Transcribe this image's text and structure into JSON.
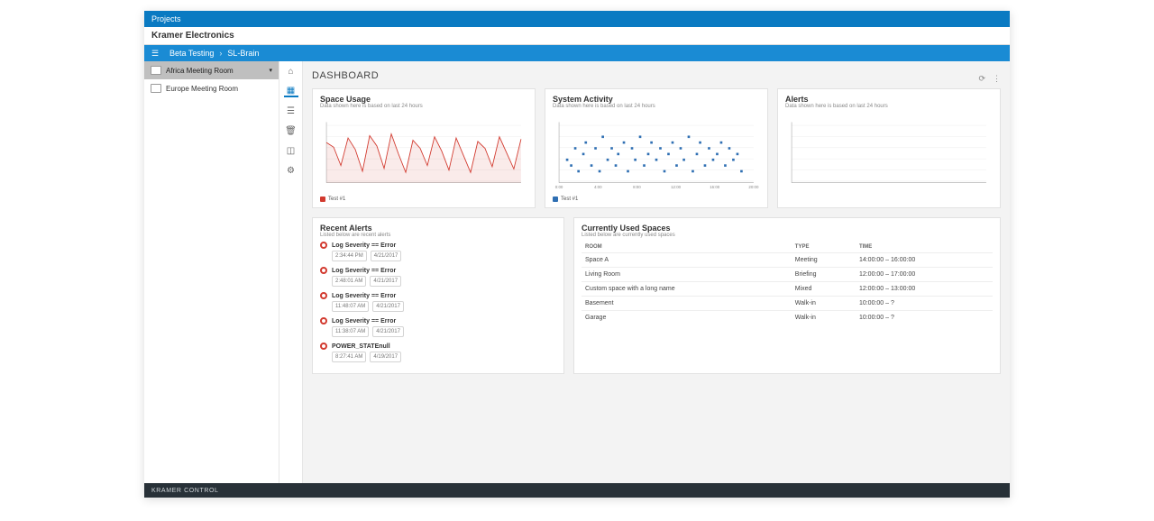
{
  "topbar": {
    "projects_label": "Projects",
    "hamburger": "menu-icon",
    "context": "Beta Testing",
    "breadcrumb_next": "SL-Brain"
  },
  "brand": "Kramer Electronics",
  "sidebar": {
    "items": [
      {
        "label": "Africa Meeting Room",
        "selected": true
      },
      {
        "label": "Europe Meeting Room",
        "selected": false
      }
    ]
  },
  "iconbar": [
    {
      "name": "home-icon",
      "glyph": "⌂",
      "active": false
    },
    {
      "name": "dashboard-icon",
      "glyph": "▦",
      "active": true
    },
    {
      "name": "document-icon",
      "glyph": "☰",
      "active": false
    },
    {
      "name": "trash-icon",
      "glyph": "🗑",
      "active": false
    },
    {
      "name": "chart-icon",
      "glyph": "◫",
      "active": false
    },
    {
      "name": "settings-icon",
      "glyph": "⚙",
      "active": false
    }
  ],
  "page": {
    "title": "DASHBOARD",
    "actions": {
      "refresh": "⟳",
      "more": "⋮"
    }
  },
  "charts": {
    "usage": {
      "type": "line",
      "title": "Space Usage",
      "subtitle": "Data shown here is based on last 24 hours",
      "line_color": "#d23a2f",
      "fill_color": "rgba(210,58,47,0.10)",
      "grid_color": "#e9e9e9",
      "bg": "#ffffff",
      "ylim": [
        0,
        100
      ],
      "legend": "Test #1",
      "values": [
        70,
        62,
        30,
        78,
        58,
        20,
        82,
        64,
        25,
        85,
        50,
        18,
        74,
        60,
        30,
        80,
        55,
        22,
        78,
        48,
        18,
        72,
        60,
        28,
        80,
        52,
        24,
        76
      ]
    },
    "activity": {
      "type": "scatter",
      "title": "System Activity",
      "subtitle": "Data shown here is based on last 24 hours",
      "point_color": "#2f6fb3",
      "grid_color": "#e9e9e9",
      "bg": "#ffffff",
      "xlim": [
        0,
        24
      ],
      "ylim": [
        0,
        10
      ],
      "xlabels": [
        "0:00",
        "4:00",
        "8:00",
        "12:00",
        "16:00",
        "20:00"
      ],
      "legend": "Test #1",
      "points": [
        [
          1,
          4
        ],
        [
          1.5,
          3
        ],
        [
          2,
          6
        ],
        [
          2.4,
          2
        ],
        [
          3,
          5
        ],
        [
          3.3,
          7
        ],
        [
          4,
          3
        ],
        [
          4.5,
          6
        ],
        [
          5,
          2
        ],
        [
          5.4,
          8
        ],
        [
          6,
          4
        ],
        [
          6.5,
          6
        ],
        [
          7,
          3
        ],
        [
          7.3,
          5
        ],
        [
          8,
          7
        ],
        [
          8.5,
          2
        ],
        [
          9,
          6
        ],
        [
          9.4,
          4
        ],
        [
          10,
          8
        ],
        [
          10.5,
          3
        ],
        [
          11,
          5
        ],
        [
          11.4,
          7
        ],
        [
          12,
          4
        ],
        [
          12.5,
          6
        ],
        [
          13,
          2
        ],
        [
          13.5,
          5
        ],
        [
          14,
          7
        ],
        [
          14.5,
          3
        ],
        [
          15,
          6
        ],
        [
          15.4,
          4
        ],
        [
          16,
          8
        ],
        [
          16.5,
          2
        ],
        [
          17,
          5
        ],
        [
          17.4,
          7
        ],
        [
          18,
          3
        ],
        [
          18.5,
          6
        ],
        [
          19,
          4
        ],
        [
          19.5,
          5
        ],
        [
          20,
          7
        ],
        [
          20.5,
          3
        ],
        [
          21,
          6
        ],
        [
          21.5,
          4
        ],
        [
          22,
          5
        ],
        [
          22.5,
          2
        ]
      ]
    },
    "alerts_chart": {
      "type": "line",
      "title": "Alerts",
      "subtitle": "Data shown here is based on last 24 hours",
      "line_color": "#888",
      "grid_color": "#e9e9e9",
      "bg": "#ffffff",
      "values": []
    }
  },
  "recent_alerts": {
    "title": "Recent Alerts",
    "subtitle": "Listed below are recent alerts",
    "items": [
      {
        "label": "Log Severity == Error",
        "time": "2:34:44 PM",
        "date": "4/21/2017"
      },
      {
        "label": "Log Severity == Error",
        "time": "2:48:01 AM",
        "date": "4/21/2017"
      },
      {
        "label": "Log Severity == Error",
        "time": "11:48:07 AM",
        "date": "4/21/2017"
      },
      {
        "label": "Log Severity == Error",
        "time": "11:38:07 AM",
        "date": "4/21/2017"
      },
      {
        "label": "POWER_STATEnull",
        "time": "8:27:41 AM",
        "date": "4/19/2017"
      }
    ]
  },
  "used_spaces": {
    "title": "Currently Used Spaces",
    "subtitle": "Listed below are currently used spaces",
    "columns": [
      "ROOM",
      "TYPE",
      "TIME"
    ],
    "rows": [
      [
        "Space A",
        "Meeting",
        "14:00:00 – 16:00:00"
      ],
      [
        "Living Room",
        "Briefing",
        "12:00:00 – 17:00:00"
      ],
      [
        "Custom space with a long name",
        "Mixed",
        "12:00:00 – 13:00:00"
      ],
      [
        "Basement",
        "Walk-in",
        "10:00:00 – ?"
      ],
      [
        "Garage",
        "Walk-in",
        "10:00:00 – ?"
      ]
    ]
  },
  "footer": "KRAMER CONTROL"
}
